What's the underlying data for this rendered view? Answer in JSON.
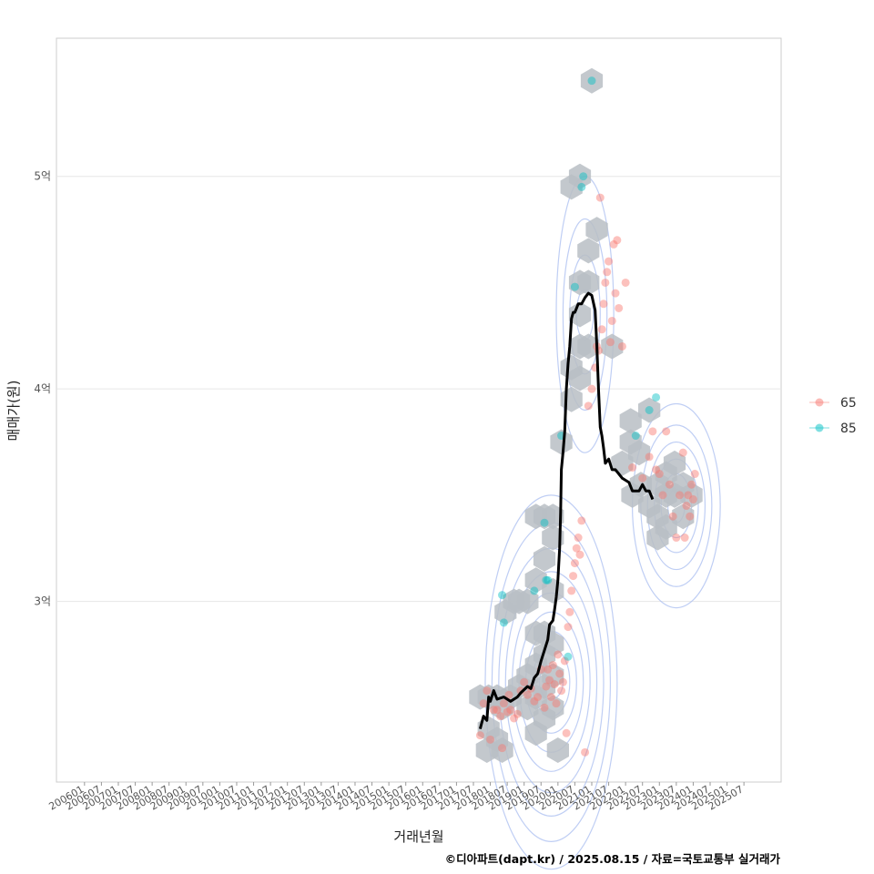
{
  "chart_data": {
    "type": "scatter",
    "title": "",
    "xlabel": "거래년월",
    "ylabel": "매매가(원)",
    "ylim": [
      2.15,
      5.65
    ],
    "y_ticks": [
      {
        "value": 3,
        "label": "3억"
      },
      {
        "value": 4,
        "label": "4억"
      },
      {
        "value": 5,
        "label": "5억"
      }
    ],
    "x_ticks": [
      "200601",
      "200607",
      "200701",
      "200707",
      "200801",
      "200807",
      "200901",
      "200907",
      "201001",
      "201007",
      "201101",
      "201107",
      "201201",
      "201207",
      "201301",
      "201307",
      "201401",
      "201407",
      "201501",
      "201507",
      "201601",
      "201607",
      "201701",
      "201707",
      "201801",
      "201807",
      "201901",
      "201907",
      "202001",
      "202007",
      "202101",
      "202107",
      "202201",
      "202207",
      "202301",
      "202307",
      "202401",
      "202407",
      "202501",
      "202507"
    ],
    "x_range_years": [
      2005.17,
      2026.6
    ],
    "grid": true,
    "legend": {
      "position": "right",
      "entries": [
        {
          "label": "65",
          "color": "#F8766D"
        },
        {
          "label": "85",
          "color": "#00BFC4"
        }
      ]
    },
    "series": [
      {
        "name": "65",
        "color": "#F8766D",
        "points": [
          [
            2017.7,
            2.37
          ],
          [
            2017.8,
            2.52
          ],
          [
            2017.9,
            2.58
          ],
          [
            2018.0,
            2.35
          ],
          [
            2018.1,
            2.49
          ],
          [
            2018.2,
            2.49
          ],
          [
            2018.3,
            2.46
          ],
          [
            2018.35,
            2.31
          ],
          [
            2018.4,
            2.52
          ],
          [
            2018.5,
            2.48
          ],
          [
            2018.55,
            2.56
          ],
          [
            2018.6,
            2.49
          ],
          [
            2018.7,
            2.45
          ],
          [
            2018.8,
            2.47
          ],
          [
            2018.9,
            2.58
          ],
          [
            2019.0,
            2.62
          ],
          [
            2019.1,
            2.56
          ],
          [
            2019.2,
            2.59
          ],
          [
            2019.3,
            2.53
          ],
          [
            2019.4,
            2.55
          ],
          [
            2019.5,
            2.68
          ],
          [
            2019.6,
            2.5
          ],
          [
            2019.65,
            2.6
          ],
          [
            2019.7,
            2.68
          ],
          [
            2019.75,
            2.63
          ],
          [
            2019.8,
            2.55
          ],
          [
            2019.85,
            2.7
          ],
          [
            2019.9,
            2.61
          ],
          [
            2019.95,
            2.52
          ],
          [
            2020.0,
            2.75
          ],
          [
            2020.05,
            2.66
          ],
          [
            2020.1,
            2.58
          ],
          [
            2020.15,
            2.62
          ],
          [
            2020.2,
            2.72
          ],
          [
            2020.25,
            2.38
          ],
          [
            2020.3,
            2.88
          ],
          [
            2020.35,
            2.95
          ],
          [
            2020.4,
            3.05
          ],
          [
            2020.45,
            3.12
          ],
          [
            2020.5,
            3.18
          ],
          [
            2020.55,
            3.25
          ],
          [
            2020.6,
            3.3
          ],
          [
            2020.65,
            3.22
          ],
          [
            2020.7,
            3.38
          ],
          [
            2020.8,
            2.29
          ],
          [
            2020.9,
            3.92
          ],
          [
            2021.0,
            4.0
          ],
          [
            2021.1,
            4.1
          ],
          [
            2021.15,
            4.2
          ],
          [
            2021.2,
            4.18
          ],
          [
            2021.25,
            4.9
          ],
          [
            2021.3,
            4.28
          ],
          [
            2021.35,
            4.4
          ],
          [
            2021.4,
            4.5
          ],
          [
            2021.45,
            4.55
          ],
          [
            2021.5,
            4.6
          ],
          [
            2021.55,
            4.22
          ],
          [
            2021.6,
            4.32
          ],
          [
            2021.65,
            4.68
          ],
          [
            2021.7,
            4.45
          ],
          [
            2021.75,
            4.7
          ],
          [
            2021.8,
            4.38
          ],
          [
            2021.9,
            4.2
          ],
          [
            2022.0,
            4.5
          ],
          [
            2022.2,
            3.63
          ],
          [
            2022.5,
            3.58
          ],
          [
            2022.7,
            3.68
          ],
          [
            2022.8,
            3.8
          ],
          [
            2022.9,
            3.62
          ],
          [
            2023.0,
            3.6
          ],
          [
            2023.1,
            3.5
          ],
          [
            2023.2,
            3.8
          ],
          [
            2023.3,
            3.55
          ],
          [
            2023.4,
            3.4
          ],
          [
            2023.5,
            3.3
          ],
          [
            2023.6,
            3.5
          ],
          [
            2023.7,
            3.7
          ],
          [
            2023.75,
            3.3
          ],
          [
            2023.8,
            3.45
          ],
          [
            2023.85,
            3.5
          ],
          [
            2023.9,
            3.4
          ],
          [
            2023.95,
            3.55
          ],
          [
            2024.0,
            3.48
          ],
          [
            2024.05,
            3.6
          ]
        ]
      },
      {
        "name": "85",
        "color": "#00BFC4",
        "points": [
          [
            2018.35,
            3.03
          ],
          [
            2018.4,
            2.9
          ],
          [
            2019.3,
            3.05
          ],
          [
            2019.6,
            3.37
          ],
          [
            2019.65,
            3.1
          ],
          [
            2019.7,
            3.1
          ],
          [
            2020.1,
            3.78
          ],
          [
            2020.3,
            2.74
          ],
          [
            2020.5,
            4.48
          ],
          [
            2020.7,
            4.95
          ],
          [
            2020.75,
            5.0
          ],
          [
            2021.0,
            5.45
          ],
          [
            2022.3,
            3.78
          ],
          [
            2022.7,
            3.9
          ],
          [
            2022.9,
            3.96
          ]
        ]
      }
    ],
    "trend_line": [
      [
        2017.7,
        2.4
      ],
      [
        2017.8,
        2.46
      ],
      [
        2017.9,
        2.44
      ],
      [
        2017.95,
        2.55
      ],
      [
        2018.0,
        2.53
      ],
      [
        2018.1,
        2.58
      ],
      [
        2018.2,
        2.54
      ],
      [
        2018.4,
        2.55
      ],
      [
        2018.6,
        2.53
      ],
      [
        2018.8,
        2.55
      ],
      [
        2018.9,
        2.57
      ],
      [
        2019.1,
        2.6
      ],
      [
        2019.2,
        2.59
      ],
      [
        2019.3,
        2.64
      ],
      [
        2019.4,
        2.66
      ],
      [
        2019.5,
        2.72
      ],
      [
        2019.6,
        2.77
      ],
      [
        2019.7,
        2.82
      ],
      [
        2019.75,
        2.89
      ],
      [
        2019.85,
        2.91
      ],
      [
        2019.9,
        2.96
      ],
      [
        2019.95,
        3.02
      ],
      [
        2020.0,
        3.1
      ],
      [
        2020.05,
        3.25
      ],
      [
        2020.08,
        3.42
      ],
      [
        2020.1,
        3.62
      ],
      [
        2020.15,
        3.7
      ],
      [
        2020.2,
        3.8
      ],
      [
        2020.25,
        4.0
      ],
      [
        2020.3,
        4.12
      ],
      [
        2020.35,
        4.2
      ],
      [
        2020.4,
        4.33
      ],
      [
        2020.45,
        4.36
      ],
      [
        2020.5,
        4.36
      ],
      [
        2020.55,
        4.38
      ],
      [
        2020.6,
        4.4
      ],
      [
        2020.7,
        4.4
      ],
      [
        2020.8,
        4.43
      ],
      [
        2020.9,
        4.45
      ],
      [
        2021.0,
        4.44
      ],
      [
        2021.1,
        4.37
      ],
      [
        2021.15,
        4.2
      ],
      [
        2021.2,
        4.0
      ],
      [
        2021.25,
        3.82
      ],
      [
        2021.3,
        3.78
      ],
      [
        2021.35,
        3.72
      ],
      [
        2021.4,
        3.65
      ],
      [
        2021.5,
        3.67
      ],
      [
        2021.6,
        3.62
      ],
      [
        2021.7,
        3.62
      ],
      [
        2021.8,
        3.6
      ],
      [
        2021.9,
        3.58
      ],
      [
        2022.0,
        3.57
      ],
      [
        2022.1,
        3.56
      ],
      [
        2022.2,
        3.52
      ],
      [
        2022.4,
        3.52
      ],
      [
        2022.5,
        3.55
      ],
      [
        2022.6,
        3.52
      ],
      [
        2022.7,
        3.52
      ],
      [
        2022.8,
        3.48
      ]
    ],
    "hex_bins": [
      [
        2017.7,
        2.55
      ],
      [
        2017.95,
        2.55
      ],
      [
        2018.2,
        2.55
      ],
      [
        2017.95,
        2.4
      ],
      [
        2018.2,
        2.35
      ],
      [
        2017.9,
        2.3
      ],
      [
        2018.35,
        2.3
      ],
      [
        2018.35,
        2.5
      ],
      [
        2018.6,
        2.55
      ],
      [
        2018.85,
        2.6
      ],
      [
        2019.1,
        2.65
      ],
      [
        2019.35,
        2.7
      ],
      [
        2019.6,
        2.75
      ],
      [
        2019.85,
        2.8
      ],
      [
        2019.85,
        2.65
      ],
      [
        2019.6,
        2.6
      ],
      [
        2019.35,
        2.55
      ],
      [
        2019.1,
        2.5
      ],
      [
        2019.35,
        2.38
      ],
      [
        2019.6,
        2.45
      ],
      [
        2019.85,
        2.5
      ],
      [
        2019.6,
        2.85
      ],
      [
        2019.35,
        2.85
      ],
      [
        2019.1,
        3.0
      ],
      [
        2019.35,
        3.1
      ],
      [
        2019.6,
        3.2
      ],
      [
        2019.85,
        3.3
      ],
      [
        2019.85,
        3.05
      ],
      [
        2019.6,
        3.4
      ],
      [
        2019.85,
        3.4
      ],
      [
        2019.35,
        3.4
      ],
      [
        2018.7,
        3.0
      ],
      [
        2018.45,
        2.95
      ],
      [
        2018.85,
        3.0
      ],
      [
        2020.0,
        2.3
      ],
      [
        2020.1,
        3.75
      ],
      [
        2020.4,
        3.95
      ],
      [
        2020.4,
        4.1
      ],
      [
        2020.65,
        4.05
      ],
      [
        2020.65,
        4.2
      ],
      [
        2020.65,
        4.35
      ],
      [
        2020.9,
        4.2
      ],
      [
        2020.65,
        4.5
      ],
      [
        2020.9,
        4.5
      ],
      [
        2020.9,
        4.65
      ],
      [
        2021.15,
        4.75
      ],
      [
        2020.4,
        4.95
      ],
      [
        2020.65,
        5.0
      ],
      [
        2021.0,
        5.45
      ],
      [
        2021.6,
        4.2
      ],
      [
        2021.9,
        3.65
      ],
      [
        2022.15,
        3.75
      ],
      [
        2022.15,
        3.85
      ],
      [
        2022.4,
        3.7
      ],
      [
        2022.2,
        3.5
      ],
      [
        2022.45,
        3.55
      ],
      [
        2022.7,
        3.45
      ],
      [
        2022.95,
        3.4
      ],
      [
        2023.2,
        3.35
      ],
      [
        2022.95,
        3.3
      ],
      [
        2022.7,
        3.9
      ],
      [
        2023.2,
        3.6
      ],
      [
        2023.45,
        3.5
      ],
      [
        2022.95,
        3.55
      ],
      [
        2023.2,
        3.5
      ],
      [
        2023.45,
        3.65
      ],
      [
        2023.7,
        3.55
      ],
      [
        2023.7,
        3.4
      ],
      [
        2023.95,
        3.5
      ]
    ]
  },
  "caption": "©디아파트(dapt.kr) / 2025.08.15 / 자료=국토교통부 실거래가"
}
